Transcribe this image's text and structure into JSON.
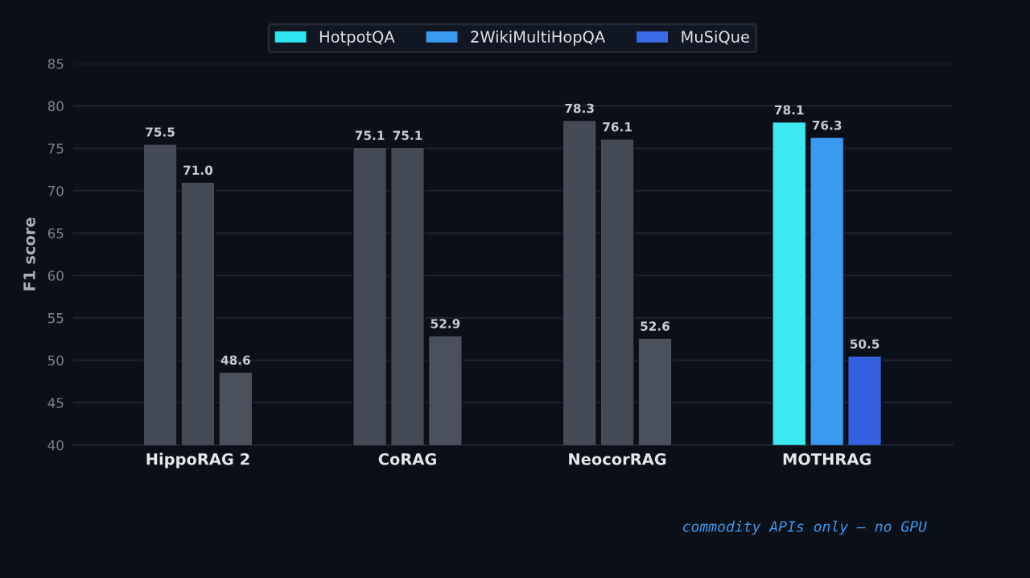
{
  "chart_data": {
    "type": "bar",
    "ylabel": "F1 score",
    "categories": [
      "HippoRAG 2",
      "CoRAG",
      "NeocorRAG",
      "MOTHRAG"
    ],
    "series": [
      {
        "name": "HotpotQA",
        "color": "#2ee6f0",
        "colors": [
          "#444a56",
          "#444a56",
          "#444a56",
          "#3ee8f0"
        ],
        "values": [
          75.5,
          75.1,
          78.3,
          78.1
        ],
        "value_labels": [
          "75.5",
          "75.1",
          "78.3",
          "78.1"
        ]
      },
      {
        "name": "2WikiMultiHopQA",
        "color": "#3a9af0",
        "colors": [
          "#444a56",
          "#444a56",
          "#444a56",
          "#3a9af0"
        ],
        "values": [
          71,
          75.1,
          76.1,
          76.3
        ],
        "value_labels": [
          "71.0",
          "75.1",
          "76.1",
          "76.3"
        ]
      },
      {
        "name": "MuSiQue",
        "color": "#3a6ae8",
        "colors": [
          "#4a505c",
          "#4a505c",
          "#4a505c",
          "#3560e0"
        ],
        "values": [
          48.6,
          52.9,
          52.6,
          50.5
        ],
        "value_labels": [
          "48.6",
          "52.9",
          "52.6",
          "50.5"
        ]
      }
    ],
    "ylim": [
      40,
      85
    ],
    "yticks": [
      40,
      45,
      50,
      55,
      60,
      65,
      70,
      75,
      80,
      85
    ],
    "grid": "y",
    "legend": "top",
    "annotations": [
      "commodity APIs only — no GPU"
    ]
  }
}
